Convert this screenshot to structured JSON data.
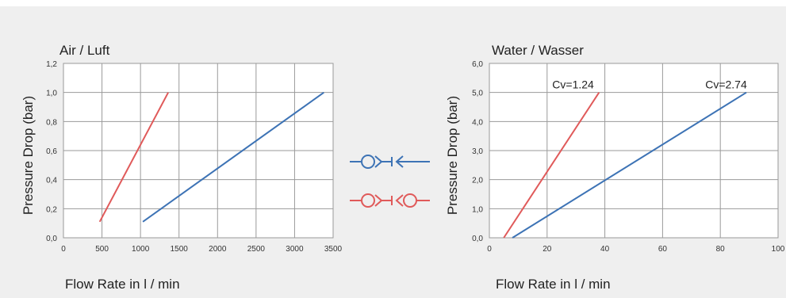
{
  "colors": {
    "red_series": "#e05a5a",
    "blue_series": "#3d73b5",
    "grid": "#9a9a9a",
    "plot_bg": "#ffffff",
    "page_bg": "#efefef"
  },
  "legend": {
    "items": [
      {
        "icon": "coupling-single-plug-icon",
        "color": "#3d73b5"
      },
      {
        "icon": "coupling-double-shutoff-icon",
        "color": "#e05a5a"
      }
    ]
  },
  "chart_data": [
    {
      "type": "line",
      "title": "Air / Luft",
      "xlabel": "Flow Rate in l / min",
      "ylabel": "Pressure Drop (bar)",
      "xlim": [
        0,
        3500
      ],
      "ylim": [
        0,
        1.2
      ],
      "xticks": [
        0,
        500,
        1000,
        1500,
        2000,
        2500,
        3000,
        3500
      ],
      "xtick_labels": [
        "0",
        "500",
        "1000",
        "1500",
        "2000",
        "2500",
        "3000",
        "3500"
      ],
      "yticks": [
        0,
        0.2,
        0.4,
        0.6,
        0.8,
        1.0,
        1.2
      ],
      "ytick_labels": [
        "0,0",
        "0,2",
        "0,4",
        "0,6",
        "0,8",
        "1,0",
        "1,2"
      ],
      "grid": true,
      "series": [
        {
          "color": "#e05a5a",
          "points": [
            [
              470,
              0.11
            ],
            [
              1360,
              1.0
            ]
          ]
        },
        {
          "color": "#3d73b5",
          "points": [
            [
              1030,
              0.11
            ],
            [
              3380,
              1.0
            ]
          ]
        }
      ],
      "annotations": []
    },
    {
      "type": "line",
      "title": "Water / Wasser",
      "xlabel": "Flow Rate in l / min",
      "ylabel": "Pressure Drop (bar)",
      "xlim": [
        0,
        100
      ],
      "ylim": [
        0,
        6.0
      ],
      "xticks": [
        0,
        20,
        40,
        60,
        80,
        100
      ],
      "xtick_labels": [
        "0",
        "20",
        "40",
        "60",
        "80",
        "100"
      ],
      "yticks": [
        0,
        1,
        2,
        3,
        4,
        5,
        6
      ],
      "ytick_labels": [
        "0,0",
        "1,0",
        "2,0",
        "3,0",
        "4,0",
        "5,0",
        "6,0"
      ],
      "grid": true,
      "series": [
        {
          "color": "#e05a5a",
          "points": [
            [
              5,
              0.0
            ],
            [
              38,
              5.0
            ]
          ]
        },
        {
          "color": "#3d73b5",
          "points": [
            [
              8,
              0.0
            ],
            [
              89,
              5.0
            ]
          ]
        }
      ],
      "annotations": [
        {
          "text": "Cv=1.24",
          "x": 29,
          "y": 5.0
        },
        {
          "text": "Cv=2.74",
          "x": 82,
          "y": 5.0
        }
      ]
    }
  ]
}
